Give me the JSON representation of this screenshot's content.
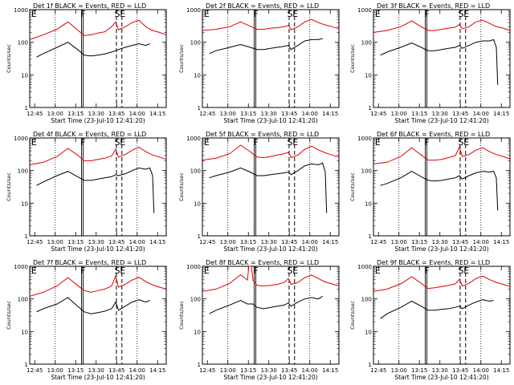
{
  "chart_data": {
    "type": "line",
    "y_scale": "log",
    "ylim": [
      1,
      1000
    ],
    "y_ticks": [
      1,
      10,
      100,
      1000
    ],
    "y_tick_labels": [
      "1",
      "10",
      "100",
      "1000"
    ],
    "ylabel": "Counts/sec",
    "xlabel": "Start Time (23-Jul-10 12:41:20)",
    "x_range_minutes_after_start": [
      0,
      100
    ],
    "x_ticks_minutes_after_start": [
      3.67,
      18.67,
      33.67,
      48.67,
      63.67,
      78.67,
      93.67
    ],
    "x_tick_labels": [
      "12:45",
      "13:00",
      "13:15",
      "13:30",
      "13:45",
      "14:00",
      "14:15"
    ],
    "dotted_lines_minutes_after_start": [
      18.67,
      78.67
    ],
    "markers": [
      {
        "label": "E",
        "type": "solid",
        "x": 0.5
      },
      {
        "label": "F",
        "type": "solid",
        "x": 38.5
      },
      {
        "label": "S",
        "type": "dashed",
        "x": 63.5
      },
      {
        "label": "E",
        "type": "dashed",
        "x": 67.5
      }
    ],
    "series_colors": {
      "Events": "#000000",
      "LLD": "#e00000"
    },
    "panels": [
      {
        "title": "Det 1f BLACK = Events, RED = LLD",
        "lld": {
          "x": [
            0,
            10,
            20,
            28,
            35,
            40,
            45,
            50,
            55,
            60,
            63,
            65,
            70,
            75,
            80,
            85,
            90,
            95,
            100
          ],
          "y": [
            120,
            170,
            250,
            420,
            240,
            160,
            170,
            190,
            210,
            300,
            420,
            240,
            300,
            400,
            470,
            300,
            230,
            200,
            170
          ]
        },
        "events": {
          "x": [
            5,
            10,
            20,
            28,
            35,
            40,
            45,
            50,
            55,
            60,
            63,
            65,
            70,
            75,
            80,
            85,
            88
          ],
          "y": [
            35,
            45,
            70,
            100,
            60,
            40,
            38,
            40,
            44,
            50,
            55,
            60,
            70,
            80,
            90,
            80,
            90
          ]
        }
      },
      {
        "title": "Det 2f BLACK = Events, RED = LLD",
        "lld": {
          "x": [
            0,
            10,
            20,
            28,
            35,
            40,
            45,
            50,
            55,
            60,
            63,
            65,
            70,
            75,
            80,
            85,
            90,
            95,
            100
          ],
          "y": [
            230,
            250,
            300,
            420,
            310,
            250,
            250,
            270,
            280,
            300,
            330,
            240,
            300,
            420,
            500,
            400,
            340,
            300,
            260
          ]
        },
        "events": {
          "x": [
            5,
            10,
            20,
            28,
            35,
            40,
            45,
            50,
            55,
            60,
            63,
            65,
            70,
            75,
            80,
            85,
            88
          ],
          "y": [
            45,
            55,
            70,
            85,
            70,
            60,
            60,
            65,
            70,
            75,
            80,
            60,
            80,
            110,
            120,
            120,
            130
          ]
        }
      },
      {
        "title": "Det 3f BLACK = Events, RED = LLD",
        "lld": {
          "x": [
            0,
            10,
            20,
            28,
            35,
            40,
            45,
            50,
            55,
            60,
            63,
            65,
            70,
            75,
            80,
            85,
            90,
            95,
            100
          ],
          "y": [
            200,
            230,
            300,
            450,
            300,
            230,
            230,
            250,
            270,
            290,
            350,
            260,
            300,
            420,
            480,
            380,
            300,
            270,
            230
          ]
        },
        "events": {
          "x": [
            5,
            10,
            20,
            28,
            35,
            40,
            45,
            50,
            55,
            60,
            63,
            65,
            70,
            75,
            80,
            85,
            88,
            90,
            91
          ],
          "y": [
            40,
            50,
            70,
            95,
            70,
            55,
            55,
            60,
            65,
            70,
            80,
            65,
            80,
            100,
            110,
            110,
            120,
            70,
            5
          ]
        }
      },
      {
        "title": "Det 4f BLACK = Events, RED = LLD",
        "lld": {
          "x": [
            0,
            10,
            20,
            28,
            35,
            40,
            45,
            50,
            55,
            60,
            63,
            65,
            70,
            75,
            80,
            85,
            90,
            95,
            100
          ],
          "y": [
            150,
            180,
            270,
            480,
            300,
            200,
            200,
            220,
            240,
            280,
            450,
            260,
            310,
            420,
            520,
            380,
            300,
            260,
            220
          ]
        },
        "events": {
          "x": [
            5,
            10,
            20,
            28,
            35,
            40,
            45,
            50,
            55,
            60,
            63,
            65,
            70,
            75,
            80,
            85,
            88,
            90,
            91
          ],
          "y": [
            35,
            45,
            70,
            95,
            65,
            50,
            50,
            55,
            60,
            65,
            75,
            70,
            80,
            100,
            120,
            110,
            120,
            70,
            5
          ]
        }
      },
      {
        "title": "Det 5f BLACK = Events, RED = LLD",
        "lld": {
          "x": [
            0,
            10,
            20,
            28,
            35,
            40,
            45,
            50,
            55,
            60,
            63,
            65,
            70,
            75,
            80,
            85,
            90,
            95,
            100
          ],
          "y": [
            210,
            240,
            330,
            600,
            380,
            260,
            250,
            270,
            300,
            330,
            360,
            250,
            300,
            450,
            560,
            430,
            350,
            300,
            260
          ]
        },
        "events": {
          "x": [
            5,
            10,
            20,
            28,
            35,
            40,
            45,
            50,
            55,
            60,
            63,
            65,
            70,
            75,
            80,
            85,
            88,
            90,
            91
          ],
          "y": [
            60,
            70,
            90,
            120,
            90,
            70,
            70,
            75,
            80,
            85,
            90,
            75,
            100,
            140,
            160,
            150,
            170,
            90,
            5
          ]
        }
      },
      {
        "title": "Det 6f BLACK = Events, RED = LLD",
        "lld": {
          "x": [
            0,
            10,
            20,
            28,
            35,
            40,
            45,
            50,
            55,
            60,
            63,
            65,
            70,
            75,
            80,
            85,
            90,
            95,
            100
          ],
          "y": [
            160,
            180,
            270,
            500,
            300,
            210,
            210,
            220,
            250,
            290,
            520,
            270,
            310,
            420,
            500,
            380,
            310,
            270,
            230
          ]
        },
        "events": {
          "x": [
            5,
            10,
            20,
            28,
            35,
            40,
            45,
            50,
            55,
            60,
            63,
            65,
            70,
            75,
            80,
            85,
            88,
            90,
            91
          ],
          "y": [
            35,
            40,
            60,
            95,
            65,
            50,
            48,
            50,
            55,
            60,
            70,
            55,
            70,
            85,
            95,
            90,
            95,
            60,
            6
          ]
        }
      },
      {
        "title": "Det 7f BLACK = Events, RED = LLD",
        "lld": {
          "x": [
            0,
            10,
            20,
            28,
            35,
            40,
            45,
            50,
            55,
            60,
            63,
            65,
            70,
            75,
            80,
            85,
            90,
            95,
            100
          ],
          "y": [
            120,
            160,
            250,
            450,
            260,
            180,
            160,
            180,
            200,
            250,
            500,
            230,
            280,
            380,
            460,
            340,
            270,
            230,
            200
          ]
        },
        "events": {
          "x": [
            5,
            10,
            20,
            28,
            35,
            40,
            45,
            50,
            55,
            60,
            63,
            65,
            70,
            75,
            80,
            85,
            88
          ],
          "y": [
            40,
            50,
            70,
            110,
            60,
            40,
            35,
            38,
            42,
            50,
            80,
            45,
            60,
            80,
            95,
            80,
            90
          ]
        }
      },
      {
        "title": "Det 8f BLACK = Events, RED = LLD",
        "lld": {
          "x": [
            0,
            10,
            20,
            28,
            33,
            34,
            36,
            37,
            40,
            45,
            50,
            55,
            60,
            63,
            65,
            70,
            75,
            80,
            85,
            90,
            95,
            100
          ],
          "y": [
            170,
            200,
            300,
            550,
            380,
            1000,
            1000,
            380,
            260,
            250,
            260,
            280,
            320,
            420,
            280,
            320,
            450,
            540,
            420,
            330,
            290,
            250
          ]
        },
        "events": {
          "x": [
            5,
            10,
            20,
            28,
            33,
            34,
            36,
            37,
            40,
            45,
            50,
            55,
            60,
            63,
            65,
            70,
            75,
            80,
            85,
            88
          ],
          "y": [
            35,
            45,
            65,
            90,
            70,
            70,
            70,
            70,
            55,
            50,
            55,
            60,
            65,
            75,
            60,
            80,
            100,
            110,
            100,
            120
          ]
        }
      },
      {
        "title": "Det 9f BLACK = Events, RED = LLD",
        "lld": {
          "x": [
            0,
            10,
            20,
            28,
            35,
            40,
            45,
            50,
            55,
            60,
            63,
            65,
            70,
            75,
            80,
            85,
            90,
            95,
            100
          ],
          "y": [
            170,
            200,
            290,
            480,
            300,
            210,
            220,
            240,
            260,
            290,
            400,
            250,
            300,
            420,
            500,
            390,
            320,
            280,
            240
          ]
        },
        "events": {
          "x": [
            5,
            10,
            20,
            28,
            35,
            40,
            45,
            50,
            55,
            60,
            63,
            65,
            70,
            75,
            80,
            85,
            88
          ],
          "y": [
            25,
            35,
            55,
            85,
            60,
            45,
            45,
            48,
            50,
            55,
            60,
            50,
            65,
            80,
            95,
            85,
            90
          ]
        }
      }
    ]
  }
}
